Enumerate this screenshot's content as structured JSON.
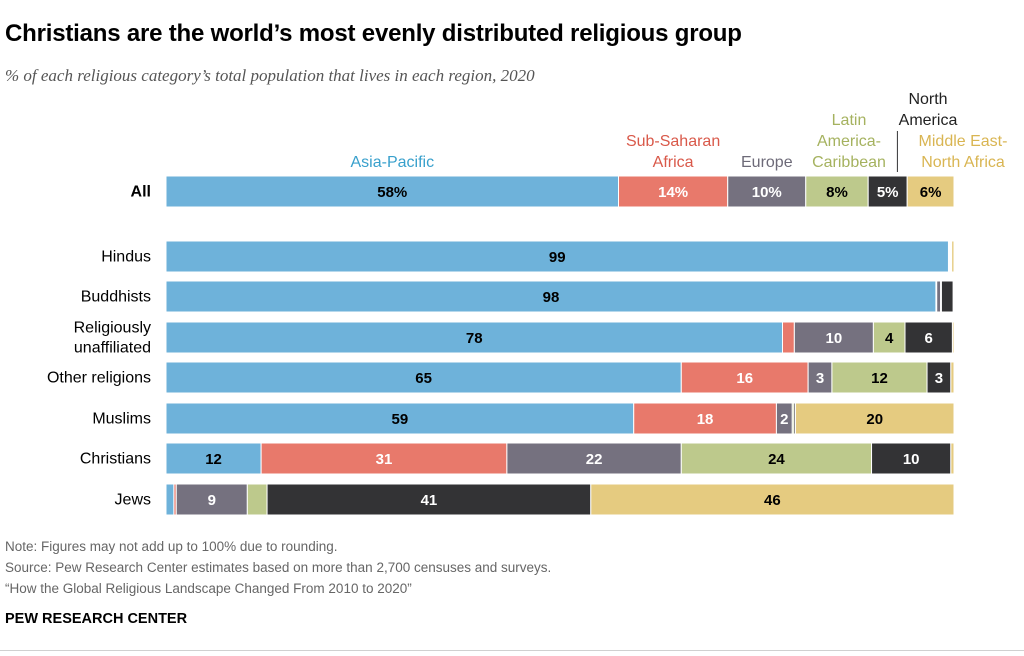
{
  "title": "Christians are the world’s most evenly distributed religious group",
  "subtitle": "% of each religious category’s total population that lives in each region, 2020",
  "notes": {
    "note": "Note: Figures may not add up to 100% due to rounding.",
    "source": "Source: Pew Research Center estimates based on more than 2,700 censuses and surveys.",
    "report": "“How the Global Religious Landscape Changed From 2010 to 2020”"
  },
  "brand": "PEW RESEARCH CENTER",
  "colors": {
    "asia": "#6eb2da",
    "africa": "#e8796b",
    "europe": "#75717f",
    "latin": "#bdc98c",
    "north": "#333335",
    "mena": "#e5cb80"
  },
  "chart_data": {
    "type": "bar",
    "orientation": "horizontal",
    "stacked": true,
    "region_labels": [
      {
        "key": "asia",
        "lines": [
          "Asia-Pacific"
        ],
        "color": "#38a0cc"
      },
      {
        "key": "africa",
        "lines": [
          "Sub-Saharan",
          "Africa"
        ],
        "color": "#d9594a"
      },
      {
        "key": "europe",
        "lines": [
          "Europe"
        ],
        "color": "#6d6a78"
      },
      {
        "key": "latin",
        "lines": [
          "Latin",
          "America-",
          "Caribbean"
        ],
        "color": "#a5b25f"
      },
      {
        "key": "north",
        "lines": [
          "North",
          "America"
        ],
        "color": "#222222"
      },
      {
        "key": "mena",
        "lines": [
          "Middle East-",
          "North Africa"
        ],
        "color": "#d9b552"
      }
    ],
    "rows": [
      {
        "label": [
          "All"
        ],
        "bold": true,
        "values": [
          58,
          14,
          10,
          8,
          5,
          6
        ],
        "labels": [
          "58%",
          "14%",
          "10%",
          "8%",
          "5%",
          "6%"
        ]
      },
      {
        "label": [
          "Hindus"
        ],
        "values": [
          99,
          0.1,
          0.1,
          0.1,
          0.1,
          0.3
        ],
        "labels": [
          "99",
          "",
          "",
          "",
          "",
          ""
        ]
      },
      {
        "label": [
          "Buddhists"
        ],
        "values": [
          98,
          0.1,
          0.5,
          0.1,
          1.5,
          0.1
        ],
        "labels": [
          "98",
          "",
          "",
          "",
          "",
          ""
        ]
      },
      {
        "label": [
          "Religiously",
          "unaffiliated"
        ],
        "values": [
          78,
          1.5,
          10,
          4,
          6,
          0.2
        ],
        "labels": [
          "78",
          "",
          "10",
          "4",
          "6",
          ""
        ]
      },
      {
        "label": [
          "Other religions"
        ],
        "values": [
          65,
          16,
          3,
          12,
          3,
          0.4
        ],
        "labels": [
          "65",
          "16",
          "3",
          "12",
          "3",
          ""
        ]
      },
      {
        "label": [
          "Muslims"
        ],
        "values": [
          59,
          18,
          2,
          0.2,
          0.2,
          20
        ],
        "labels": [
          "59",
          "18",
          "2",
          "",
          "",
          "20"
        ]
      },
      {
        "label": [
          "Christians"
        ],
        "values": [
          12,
          31,
          22,
          24,
          10,
          0.4
        ],
        "labels": [
          "12",
          "31",
          "22",
          "24",
          "10",
          ""
        ]
      },
      {
        "label": [
          "Jews"
        ],
        "values": [
          1,
          0.3,
          9,
          2.5,
          41,
          46
        ],
        "labels": [
          "",
          "",
          "9",
          "",
          "41",
          "46"
        ]
      }
    ]
  }
}
